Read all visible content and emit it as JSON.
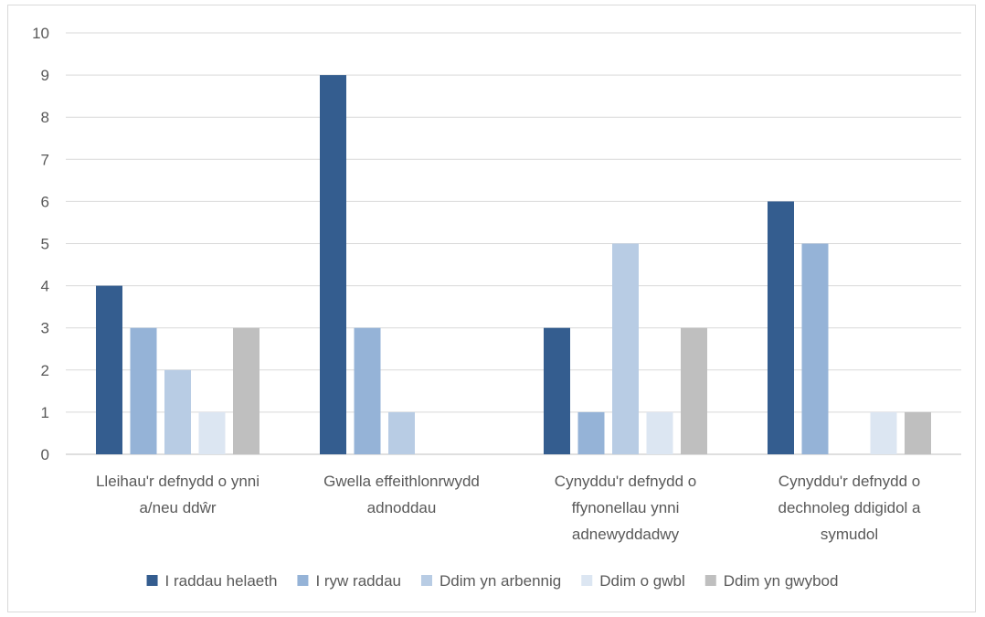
{
  "chart_data": {
    "type": "bar",
    "title": "",
    "xlabel": "",
    "ylabel": "",
    "ylim": [
      0,
      10
    ],
    "yticks": [
      0,
      1,
      2,
      3,
      4,
      5,
      6,
      7,
      8,
      9,
      10
    ],
    "grid": true,
    "legend_position": "bottom",
    "categories": [
      [
        "Lleihau'r defnydd o ynni",
        "a/neu ddŵr"
      ],
      [
        "Gwella effeithlonrwydd",
        "adnoddau"
      ],
      [
        "Cynyddu'r defnydd o",
        "ffynonellau ynni",
        "adnewyddadwy"
      ],
      [
        "Cynyddu'r defnydd o",
        "dechnoleg ddigidol a",
        "symudol"
      ]
    ],
    "series": [
      {
        "name": "I raddau helaeth",
        "color": "#345d8f",
        "values": [
          4,
          9,
          3,
          6
        ]
      },
      {
        "name": "I ryw raddau",
        "color": "#95b3d7",
        "values": [
          3,
          3,
          1,
          5
        ]
      },
      {
        "name": "Ddim yn arbennig",
        "color": "#b8cce4",
        "values": [
          2,
          1,
          5,
          0
        ]
      },
      {
        "name": "Ddim o gwbl",
        "color": "#dce6f2",
        "values": [
          1,
          0,
          1,
          1
        ]
      },
      {
        "name": "Ddim yn gwybod",
        "color": "#bfbfbf",
        "values": [
          3,
          0,
          3,
          1
        ]
      }
    ]
  }
}
